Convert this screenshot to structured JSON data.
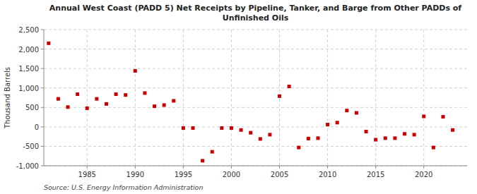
{
  "chart_data": {
    "type": "scatter",
    "title": "Annual West Coast (PADD 5) Net Receipts by Pipeline, Tanker, and Barge from Other PADDs of\nUnfinished Oils",
    "y_label": "Thousand Barrels",
    "source": "Source: U.S. Energy Information Administration",
    "color": "#cc0000",
    "marker": "square",
    "grid": true,
    "x": [
      1981,
      1982,
      1983,
      1984,
      1985,
      1986,
      1987,
      1988,
      1989,
      1990,
      1991,
      1992,
      1993,
      1994,
      1995,
      1996,
      1997,
      1998,
      1999,
      2000,
      2001,
      2002,
      2003,
      2004,
      2005,
      2006,
      2007,
      2008,
      2009,
      2010,
      2011,
      2012,
      2013,
      2014,
      2015,
      2016,
      2017,
      2018,
      2019,
      2020,
      2021,
      2022,
      2023
    ],
    "values": [
      2150,
      720,
      510,
      840,
      480,
      720,
      590,
      840,
      820,
      1440,
      870,
      530,
      560,
      670,
      -30,
      -30,
      -870,
      -640,
      -30,
      -30,
      -80,
      -150,
      -310,
      -200,
      790,
      1040,
      -530,
      -300,
      -290,
      60,
      110,
      420,
      360,
      -120,
      -330,
      -290,
      -290,
      -180,
      -200,
      270,
      -530,
      260,
      -80
    ],
    "xlim": [
      1980.5,
      2024.5
    ],
    "xticks": [
      1985,
      1990,
      1995,
      2000,
      2005,
      2010,
      2015,
      2020
    ],
    "ylim": [
      -1000,
      2500
    ],
    "yticks": [
      {
        "value": -1000,
        "label": "-1,000"
      },
      -500,
      0,
      500,
      {
        "value": 1000,
        "label": "1,000"
      },
      {
        "value": 1500,
        "label": "1,500"
      },
      {
        "value": 2000,
        "label": "2,000"
      },
      {
        "value": 2500,
        "label": "2,500"
      }
    ]
  }
}
